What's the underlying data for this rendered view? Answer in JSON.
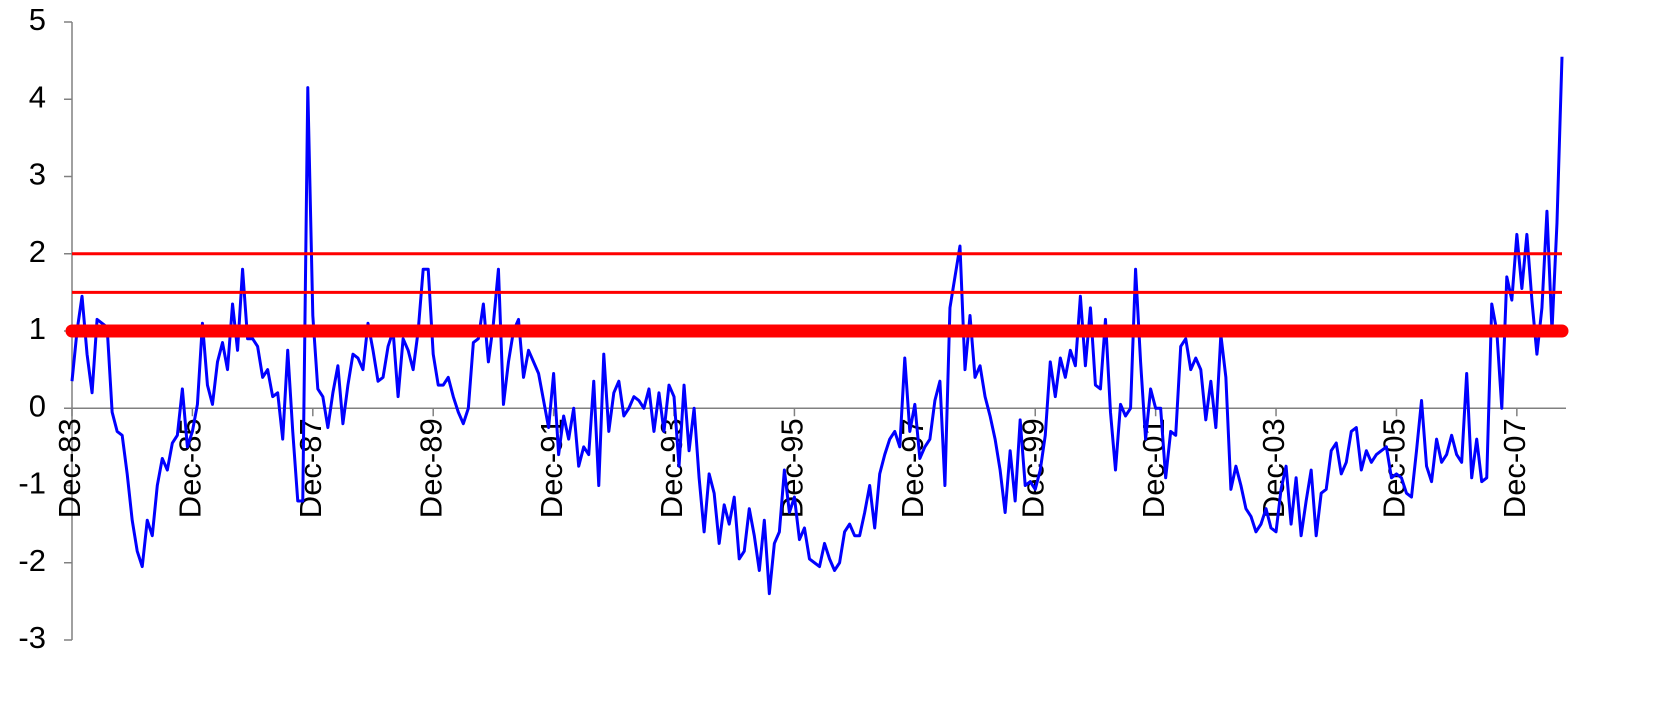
{
  "chart_data": {
    "type": "line",
    "categories": [
      "Dec-83",
      null,
      null,
      null,
      null,
      null,
      null,
      null,
      null,
      null,
      null,
      null,
      null,
      null,
      null,
      null,
      null,
      null,
      null,
      null,
      null,
      null,
      null,
      null,
      "Dec-85",
      null,
      null,
      null,
      null,
      null,
      null,
      null,
      null,
      null,
      null,
      null,
      null,
      null,
      null,
      null,
      null,
      null,
      null,
      null,
      null,
      null,
      null,
      null,
      "Dec-87",
      null,
      null,
      null,
      null,
      null,
      null,
      null,
      null,
      null,
      null,
      null,
      null,
      null,
      null,
      null,
      null,
      null,
      null,
      null,
      null,
      null,
      null,
      null,
      "Dec-89",
      null,
      null,
      null,
      null,
      null,
      null,
      null,
      null,
      null,
      null,
      null,
      null,
      null,
      null,
      null,
      null,
      null,
      null,
      null,
      null,
      null,
      null,
      null,
      "Dec-91",
      null,
      null,
      null,
      null,
      null,
      null,
      null,
      null,
      null,
      null,
      null,
      null,
      null,
      null,
      null,
      null,
      null,
      null,
      null,
      null,
      null,
      null,
      null,
      "Dec-93",
      null,
      null,
      null,
      null,
      null,
      null,
      null,
      null,
      null,
      null,
      null,
      null,
      null,
      null,
      null,
      null,
      null,
      null,
      null,
      null,
      null,
      null,
      null,
      "Dec-95",
      null,
      null,
      null,
      null,
      null,
      null,
      null,
      null,
      null,
      null,
      null,
      null,
      null,
      null,
      null,
      null,
      null,
      null,
      null,
      null,
      null,
      null,
      null,
      "Dec-97",
      null,
      null,
      null,
      null,
      null,
      null,
      null,
      null,
      null,
      null,
      null,
      null,
      null,
      null,
      null,
      null,
      null,
      null,
      null,
      null,
      null,
      null,
      null,
      "Dec-99",
      null,
      null,
      null,
      null,
      null,
      null,
      null,
      null,
      null,
      null,
      null,
      null,
      null,
      null,
      null,
      null,
      null,
      null,
      null,
      null,
      null,
      null,
      null,
      "Dec-01",
      null,
      null,
      null,
      null,
      null,
      null,
      null,
      null,
      null,
      null,
      null,
      null,
      null,
      null,
      null,
      null,
      null,
      null,
      null,
      null,
      null,
      null,
      null,
      "Dec-03",
      null,
      null,
      null,
      null,
      null,
      null,
      null,
      null,
      null,
      null,
      null,
      null,
      null,
      null,
      null,
      null,
      null,
      null,
      null,
      null,
      null,
      null,
      null,
      "Dec-05",
      null,
      null,
      null,
      null,
      null,
      null,
      null,
      null,
      null,
      null,
      null,
      null,
      null,
      null,
      null,
      null,
      null,
      null,
      null,
      null,
      null,
      null,
      null,
      "Dec-07",
      null,
      null,
      null,
      null,
      null,
      null,
      null,
      null,
      null
    ],
    "series": [
      {
        "color": "#0000ff",
        "values": [
          0.35,
          1.0,
          1.45,
          0.7,
          0.2,
          1.15,
          1.1,
          1.05,
          -0.05,
          -0.3,
          -0.35,
          -0.85,
          -1.45,
          -1.85,
          -2.05,
          -1.45,
          -1.65,
          -1.0,
          -0.65,
          -0.8,
          -0.45,
          -0.35,
          0.25,
          -0.5,
          -0.3,
          0.05,
          1.1,
          0.3,
          0.05,
          0.6,
          0.85,
          0.5,
          1.35,
          0.75,
          1.8,
          0.9,
          0.9,
          0.8,
          0.4,
          0.5,
          0.15,
          0.2,
          -0.4,
          0.75,
          -0.3,
          -1.2,
          -1.2,
          4.15,
          1.2,
          0.25,
          0.15,
          -0.25,
          0.2,
          0.55,
          -0.2,
          0.3,
          0.7,
          0.65,
          0.5,
          1.1,
          0.75,
          0.35,
          0.4,
          0.8,
          1.0,
          0.15,
          0.9,
          0.75,
          0.5,
          1.0,
          1.8,
          1.8,
          0.7,
          0.3,
          0.3,
          0.4,
          0.15,
          -0.05,
          -0.2,
          0.0,
          0.85,
          0.9,
          1.35,
          0.6,
          1.1,
          1.8,
          0.05,
          0.6,
          1.0,
          1.15,
          0.4,
          0.75,
          0.6,
          0.45,
          0.1,
          -0.25,
          0.45,
          -0.6,
          -0.1,
          -0.4,
          0.0,
          -0.75,
          -0.5,
          -0.6,
          0.35,
          -1.0,
          0.7,
          -0.3,
          0.2,
          0.35,
          -0.1,
          0.0,
          0.15,
          0.1,
          0.0,
          0.25,
          -0.3,
          0.2,
          -0.3,
          0.3,
          0.15,
          -0.75,
          0.3,
          -0.55,
          0.0,
          -0.9,
          -1.6,
          -0.85,
          -1.1,
          -1.75,
          -1.25,
          -1.5,
          -1.15,
          -1.95,
          -1.85,
          -1.3,
          -1.65,
          -2.1,
          -1.45,
          -2.4,
          -1.75,
          -1.6,
          -0.8,
          -1.35,
          -1.15,
          -1.7,
          -1.55,
          -1.95,
          -2.0,
          -2.05,
          -1.75,
          -1.95,
          -2.1,
          -2.0,
          -1.6,
          -1.5,
          -1.65,
          -1.65,
          -1.35,
          -1.0,
          -1.55,
          -0.85,
          -0.6,
          -0.4,
          -0.3,
          -0.5,
          0.65,
          -0.3,
          0.05,
          -0.65,
          -0.5,
          -0.4,
          0.1,
          0.35,
          -1.0,
          1.3,
          1.7,
          2.1,
          0.5,
          1.2,
          0.4,
          0.55,
          0.15,
          -0.1,
          -0.4,
          -0.8,
          -1.35,
          -0.55,
          -1.2,
          -0.15,
          -1.0,
          -0.95,
          -1.05,
          -0.8,
          -0.35,
          0.6,
          0.15,
          0.65,
          0.4,
          0.75,
          0.55,
          1.45,
          0.55,
          1.3,
          0.3,
          0.25,
          1.15,
          -0.05,
          -0.8,
          0.05,
          -0.1,
          0.0,
          1.8,
          0.6,
          -0.4,
          0.25,
          0.0,
          0.0,
          -0.9,
          -0.3,
          -0.35,
          0.8,
          0.9,
          0.5,
          0.65,
          0.5,
          -0.15,
          0.35,
          -0.25,
          0.95,
          0.4,
          -1.05,
          -0.75,
          -1.0,
          -1.3,
          -1.4,
          -1.6,
          -1.5,
          -1.3,
          -1.55,
          -1.6,
          -1.05,
          -0.75,
          -1.5,
          -0.9,
          -1.65,
          -1.2,
          -0.8,
          -1.65,
          -1.1,
          -1.05,
          -0.55,
          -0.45,
          -0.85,
          -0.7,
          -0.3,
          -0.25,
          -0.8,
          -0.55,
          -0.7,
          -0.6,
          -0.55,
          -0.5,
          -0.9,
          -0.85,
          -0.9,
          -1.1,
          -1.15,
          -0.55,
          0.1,
          -0.75,
          -0.95,
          -0.4,
          -0.7,
          -0.6,
          -0.35,
          -0.6,
          -0.7,
          0.45,
          -0.9,
          -0.4,
          -0.95,
          -0.9,
          1.35,
          1.0,
          0.0,
          1.7,
          1.4,
          2.25,
          1.55,
          2.25,
          1.4,
          0.7,
          1.3,
          2.55,
          1.0,
          2.4,
          4.55
        ]
      }
    ],
    "ylim": [
      -3,
      5
    ],
    "yticks": [
      -3,
      -2,
      -1,
      0,
      1,
      2,
      3,
      4,
      5
    ],
    "hlines": [
      2,
      1.5,
      1
    ],
    "hline_color": "#ff0000"
  }
}
